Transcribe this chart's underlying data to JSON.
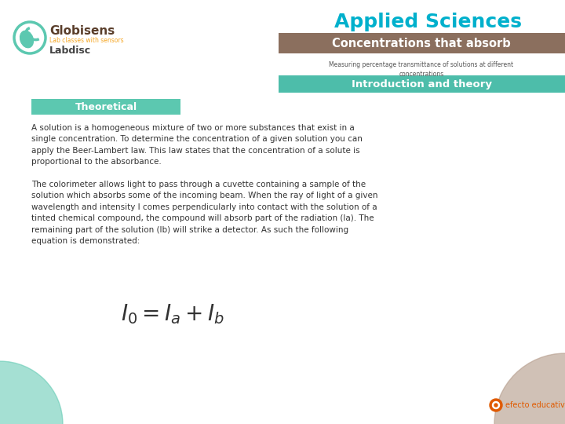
{
  "bg_color": "#ffffff",
  "title_applied": "Applied Sciences",
  "title_applied_color": "#00b0cc",
  "banner_color": "#8B6F5E",
  "banner_text": "Concentrations that absorb",
  "banner_text_color": "#ffffff",
  "subtitle_text": "Measuring percentage transmittance of solutions at different\nconcentrations",
  "subtitle_color": "#555555",
  "tab_color": "#4dbdaa",
  "tab_text": "Introduction and theory",
  "tab_text_color": "#ffffff",
  "section_label": "Theoretical",
  "section_label_color": "#ffffff",
  "section_label_bg": "#5cc8b0",
  "body_text1": "A solution is a homogeneous mixture of two or more substances that exist in a\nsingle concentration. To determine the concentration of a given solution you can\napply the Beer-Lambert law. This law states that the concentration of a solute is\nproportional to the absorbance.",
  "body_text2": "The colorimeter allows light to pass through a cuvette containing a sample of the\nsolution which absorbs some of the incoming beam. When the ray of light of a given\nwavelength and intensity I comes perpendicularly into contact with the solution of a\ntinted chemical compound, the compound will absorb part of the radiation (Ia). The\nremaining part of the solution (Ib) will strike a detector. As such the following\nequation is demonstrated:",
  "body_color": "#333333",
  "formula": "$I_0 =I_a + I_b$",
  "globisens_color": "#5a3e2b",
  "lab_subtitle_color": "#f5a623",
  "labdisc_color": "#444444",
  "teal_circle_color": "#5cc8b0",
  "tan_circle_color": "#b8a090",
  "efecto_color": "#e05a00",
  "efecto_text": "efecto educativo",
  "logo_orange_color": "#e05a00"
}
